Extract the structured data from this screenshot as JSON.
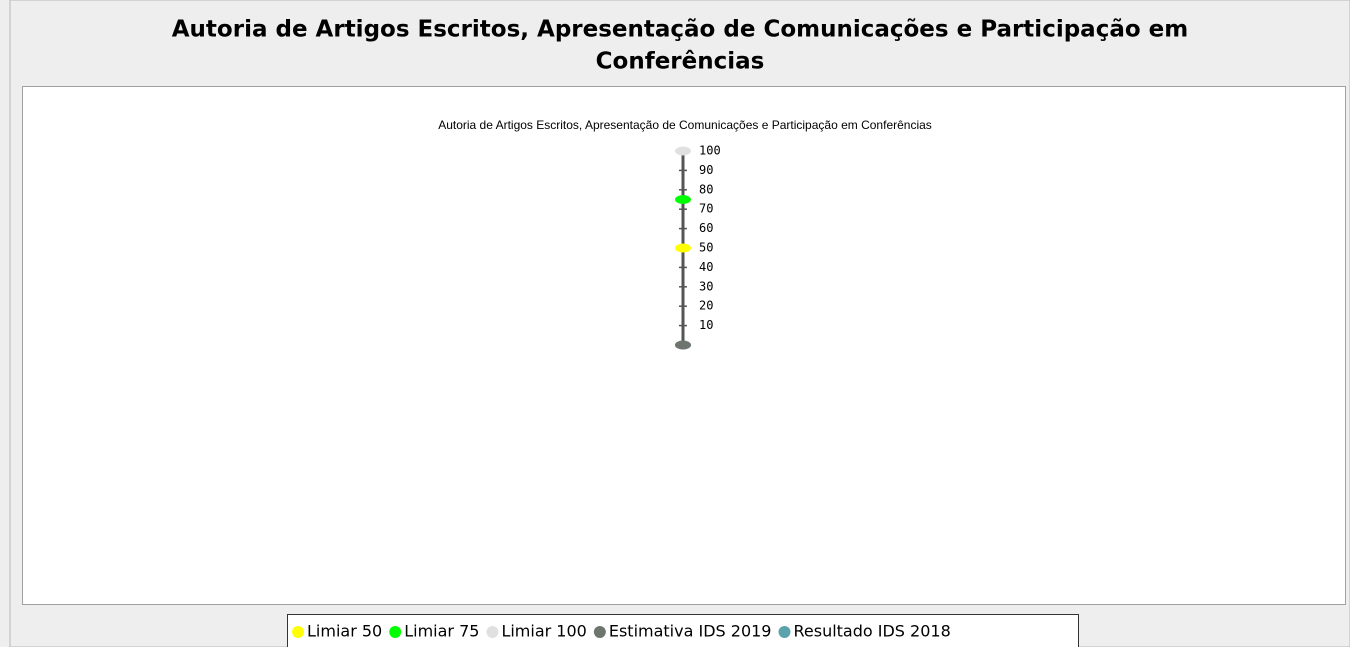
{
  "header": {
    "title_lines": [
      "Autoria de Artigos Escritos, Apresentação de Comunicações e Participação em",
      "Conferências"
    ]
  },
  "chart_data": {
    "type": "dot",
    "title": "Autoria de Artigos Escritos, Apresentação de Comunicações e Participação em Conferências",
    "ylim": [
      0,
      100
    ],
    "yticks": [
      10,
      20,
      30,
      40,
      50,
      60,
      70,
      80,
      90,
      100
    ],
    "series": [
      {
        "name": "Limiar 50",
        "color": "#ffff00",
        "values": [
          50
        ]
      },
      {
        "name": "Limiar 75",
        "color": "#00ff00",
        "values": [
          75
        ]
      },
      {
        "name": "Limiar 100",
        "color": "#e0e0e0",
        "values": [
          100
        ]
      },
      {
        "name": "Estimativa IDS 2019",
        "color": "#6e756e",
        "values": [
          0
        ]
      },
      {
        "name": "Resultado IDS 2018",
        "color": "#5aa3ad",
        "values": [
          0
        ]
      }
    ]
  }
}
